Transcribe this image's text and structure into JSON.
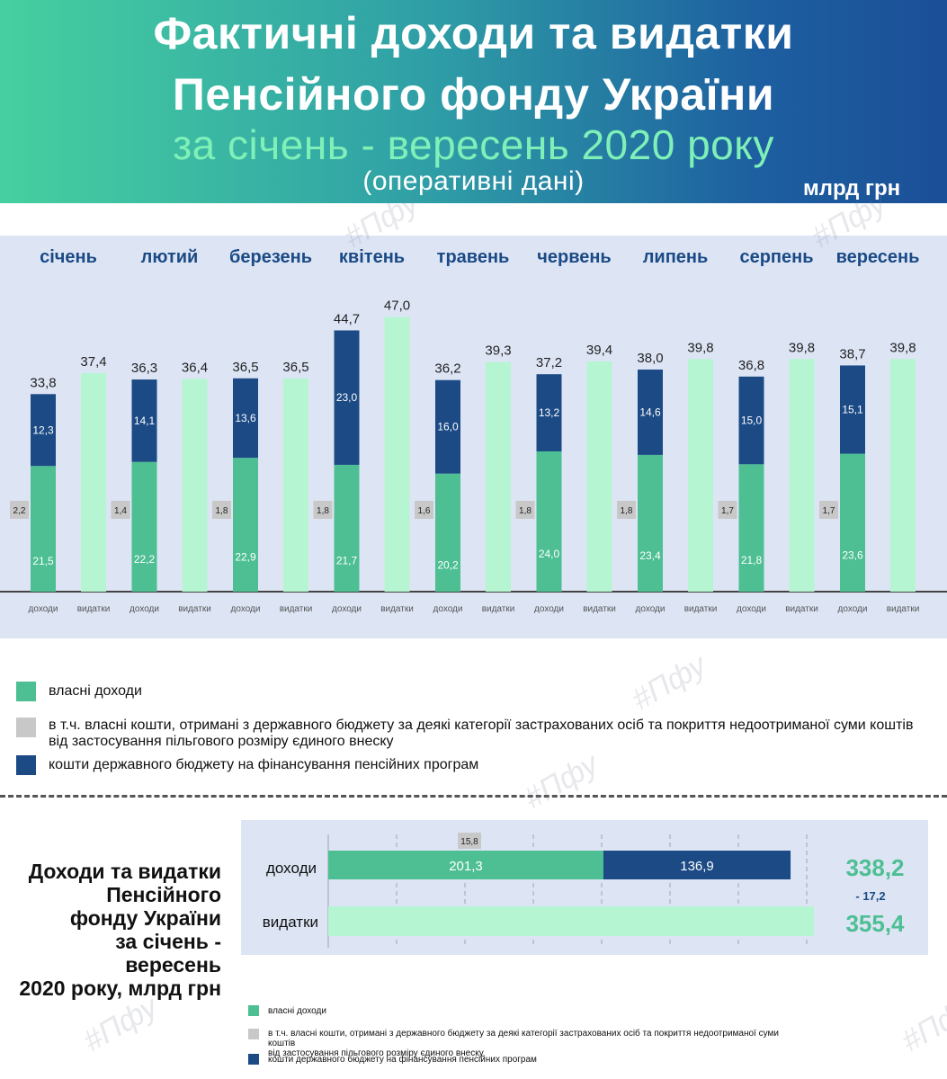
{
  "header": {
    "line1": "Фактичні доходи та видатки",
    "line2": "Пенсійного фонду України",
    "line3": "за січень - вересень 2020 року",
    "line4": "(оперативні дані)",
    "unit": "млрд грн"
  },
  "watermark": "#Пфу",
  "colors": {
    "own_income": "#4dbf93",
    "state_budget": "#1b4a85",
    "state_part_in_own": "#c8c8c8",
    "expenses": "#b5f5d1",
    "month_label": "#1b4a85",
    "total_value": "#4dbf93"
  },
  "chart_data": [
    {
      "type": "bar",
      "stacked": true,
      "categories": [
        "січень",
        "лютий",
        "березень",
        "квітень",
        "травень",
        "червень",
        "липень",
        "серпень",
        "вересень"
      ],
      "bar_labels": [
        "доходи",
        "видатки"
      ],
      "series": [
        {
          "name": "власні доходи",
          "values": [
            21.5,
            22.2,
            22.9,
            21.7,
            20.2,
            24.0,
            23.4,
            21.8,
            23.6
          ]
        },
        {
          "name": "кошти державного бюджету на фінансування пенсійних програм",
          "values": [
            12.3,
            14.1,
            13.6,
            23.0,
            16.0,
            13.2,
            14.6,
            15.0,
            15.1
          ]
        },
        {
          "name": "в т.ч. власні кошти, отримані з державного бюджету",
          "values": [
            2.2,
            1.4,
            1.8,
            1.8,
            1.6,
            1.8,
            1.8,
            1.7,
            1.7
          ]
        }
      ],
      "income_total_labels": [
        "33,8",
        "36,3",
        "36,5",
        "44,7",
        "36,2",
        "37,2",
        "38,0",
        "36,8",
        "38,7"
      ],
      "expense_values": [
        37.4,
        36.4,
        36.5,
        47.0,
        39.3,
        39.4,
        39.8,
        39.8,
        39.8
      ],
      "expense_labels": [
        "37,4",
        "36,4",
        "36,5",
        "47,0",
        "39,3",
        "39,4",
        "39,8",
        "39,8",
        "39,8"
      ],
      "own_labels": [
        "21,5",
        "22,2",
        "22,9",
        "21,7",
        "20,2",
        "24,0",
        "23,4",
        "21,8",
        "23,6"
      ],
      "state_labels": [
        "12,3",
        "14,1",
        "13,6",
        "23,0",
        "16,0",
        "13,2",
        "14,6",
        "15,0",
        "15,1"
      ],
      "state_part_labels": [
        "2,2",
        "1,4",
        "1,8",
        "1,8",
        "1,6",
        "1,8",
        "1,8",
        "1,7",
        "1,7"
      ],
      "ylim": [
        0,
        50
      ],
      "grid": false
    },
    {
      "type": "bar",
      "orientation": "horizontal",
      "stacked": true,
      "title": "Доходи та видатки Пенсійного фонду України за січень - вересень 2020 року, млрд грн",
      "categories": [
        "доходи",
        "видатки"
      ],
      "income_own": 201.3,
      "income_own_label": "201,3",
      "income_state": 136.9,
      "income_state_label": "136,9",
      "state_part": 15.8,
      "state_part_label": "15,8",
      "expenses": 355.4,
      "expenses_label": "355,4",
      "income_total_label": "338,2",
      "difference_label": "- 17,2",
      "xlim": [
        0,
        400
      ],
      "grid": true
    }
  ],
  "legend": {
    "own": "власні доходи",
    "state_part_line1": "в т.ч. власні кошти, отримані з державного бюджету за деякі категорії застрахованих осіб та покриття недоотриманої суми коштів",
    "state_part_line2": "від застосування пільгового розміру єдиного внеску",
    "state": "кошти державного бюджету на фінансування пенсійних програм"
  },
  "summary": {
    "title_lines": [
      "Доходи та видатки",
      "Пенсійного",
      "фонду України",
      "за січень - вересень",
      "2020 року, млрд грн"
    ]
  }
}
